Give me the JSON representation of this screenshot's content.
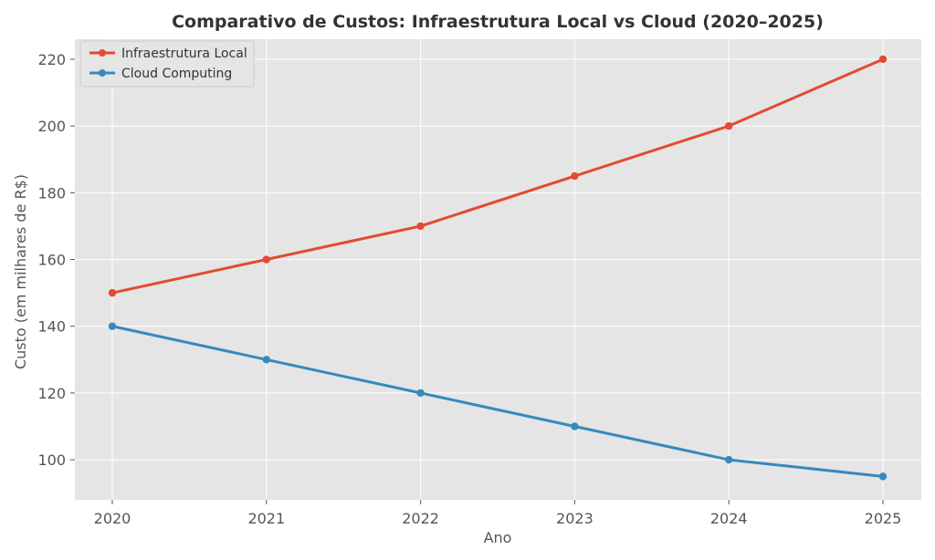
{
  "chart_data": {
    "type": "line",
    "title": "Comparativo de Custos: Infraestrutura Local vs Cloud (2020–2025)",
    "xlabel": "Ano",
    "ylabel": "Custo (em milhares de R$)",
    "x": [
      "2020",
      "2021",
      "2022",
      "2023",
      "2024",
      "2025"
    ],
    "ylim": [
      88,
      226
    ],
    "yticks": [
      100,
      120,
      140,
      160,
      180,
      200,
      220
    ],
    "grid": true,
    "legend_position": "top-left",
    "series": [
      {
        "name": "Infraestrutura Local",
        "color": "#E24A33",
        "values": [
          150,
          160,
          170,
          185,
          200,
          220
        ]
      },
      {
        "name": "Cloud Computing",
        "color": "#348ABD",
        "values": [
          140,
          130,
          120,
          110,
          100,
          95
        ]
      }
    ]
  }
}
